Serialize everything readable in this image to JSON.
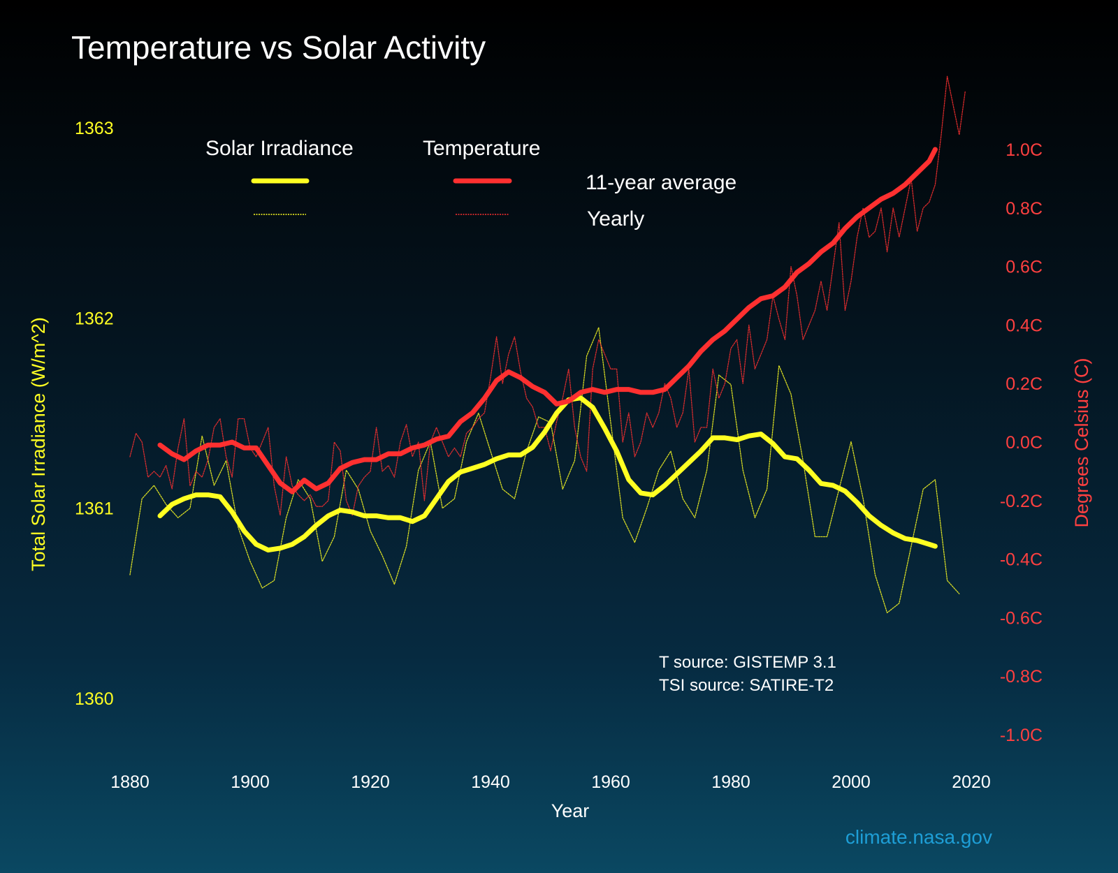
{
  "chart_data": {
    "type": "line",
    "title": "Temperature vs Solar Activity",
    "xlabel": "Year",
    "ylabel_left": "Total Solar Irradiance (W/m^2)",
    "ylabel_right": "Degrees Celsius (C)",
    "xlim": [
      1880,
      2020
    ],
    "ylim_left": [
      1360,
      1363
    ],
    "ylim_right": [
      -1.0,
      1.0
    ],
    "x_ticks": [
      "1880",
      "1900",
      "1920",
      "1940",
      "1960",
      "1980",
      "2000",
      "2020"
    ],
    "y_left_ticks": [
      "1363",
      "1362",
      "1361",
      "1360"
    ],
    "y_right_ticks": [
      "1.0C",
      "0.8C",
      "0.6C",
      "0.4C",
      "0.2C",
      "0.0C",
      "-0.2C",
      "-0.4C",
      "-0.6C",
      "-0.8C",
      "-1.0C"
    ],
    "legend": {
      "groups": [
        "Solar Irradiance",
        "Temperature"
      ],
      "styles": [
        "11-year average",
        "Yearly"
      ]
    },
    "annotations": {
      "t_source": "T source: GISTEMP 3.1",
      "tsi_source": "TSI source: SATIRE-T2",
      "credit": "climate.nasa.gov"
    },
    "colors": {
      "solar": "#ffff22",
      "temperature": "#ff3030",
      "credit": "#1e9ed6"
    },
    "series": [
      {
        "group": "Solar Irradiance",
        "style": "11-year average",
        "axis": "left",
        "x": [
          1885,
          1887,
          1889,
          1891,
          1893,
          1895,
          1897,
          1899,
          1901,
          1903,
          1905,
          1907,
          1909,
          1911,
          1913,
          1915,
          1917,
          1919,
          1921,
          1923,
          1925,
          1927,
          1929,
          1931,
          1933,
          1935,
          1937,
          1939,
          1941,
          1943,
          1945,
          1947,
          1949,
          1951,
          1953,
          1955,
          1957,
          1959,
          1961,
          1963,
          1965,
          1967,
          1969,
          1971,
          1973,
          1975,
          1977,
          1979,
          1981,
          1983,
          1985,
          1987,
          1989,
          1991,
          1993,
          1995,
          1997,
          1999,
          2001,
          2003,
          2005,
          2007,
          2009,
          2011,
          2013,
          2014
        ],
        "y": [
          1360.96,
          1361.02,
          1361.05,
          1361.07,
          1361.07,
          1361.06,
          1360.98,
          1360.88,
          1360.81,
          1360.78,
          1360.79,
          1360.81,
          1360.85,
          1360.91,
          1360.96,
          1360.99,
          1360.98,
          1360.96,
          1360.96,
          1360.95,
          1360.95,
          1360.93,
          1360.96,
          1361.05,
          1361.14,
          1361.19,
          1361.21,
          1361.23,
          1361.26,
          1361.28,
          1361.28,
          1361.32,
          1361.4,
          1361.5,
          1361.57,
          1361.58,
          1361.53,
          1361.42,
          1361.3,
          1361.15,
          1361.08,
          1361.07,
          1361.12,
          1361.18,
          1361.24,
          1361.3,
          1361.37,
          1361.37,
          1361.36,
          1361.38,
          1361.39,
          1361.34,
          1361.27,
          1361.26,
          1361.2,
          1361.13,
          1361.12,
          1361.09,
          1361.03,
          1360.96,
          1360.91,
          1360.87,
          1360.84,
          1360.83,
          1360.81,
          1360.8
        ]
      },
      {
        "group": "Solar Irradiance",
        "style": "Yearly",
        "axis": "left",
        "x": [
          1880,
          1882,
          1884,
          1886,
          1888,
          1890,
          1892,
          1894,
          1896,
          1898,
          1900,
          1902,
          1904,
          1906,
          1908,
          1910,
          1912,
          1914,
          1916,
          1918,
          1920,
          1922,
          1924,
          1926,
          1928,
          1930,
          1932,
          1934,
          1936,
          1938,
          1940,
          1942,
          1944,
          1946,
          1948,
          1950,
          1952,
          1954,
          1956,
          1958,
          1960,
          1962,
          1964,
          1966,
          1968,
          1970,
          1972,
          1974,
          1976,
          1978,
          1980,
          1982,
          1984,
          1986,
          1988,
          1990,
          1992,
          1994,
          1996,
          2000,
          2002,
          2004,
          2006,
          2008,
          2010,
          2012,
          2014,
          2016,
          2018
        ],
        "y": [
          1360.65,
          1361.05,
          1361.12,
          1361.02,
          1360.95,
          1361.0,
          1361.38,
          1361.12,
          1361.25,
          1360.9,
          1360.72,
          1360.58,
          1360.62,
          1360.95,
          1361.15,
          1361.05,
          1360.72,
          1360.85,
          1361.2,
          1361.1,
          1360.88,
          1360.75,
          1360.6,
          1360.8,
          1361.2,
          1361.35,
          1361.0,
          1361.05,
          1361.35,
          1361.5,
          1361.3,
          1361.1,
          1361.05,
          1361.3,
          1361.48,
          1361.45,
          1361.1,
          1361.25,
          1361.8,
          1361.95,
          1361.45,
          1360.95,
          1360.82,
          1361.0,
          1361.2,
          1361.3,
          1361.05,
          1360.95,
          1361.2,
          1361.7,
          1361.65,
          1361.2,
          1360.95,
          1361.1,
          1361.75,
          1361.6,
          1361.25,
          1360.85,
          1360.85,
          1361.35,
          1361.05,
          1360.65,
          1360.45,
          1360.5,
          1360.8,
          1361.1,
          1361.15,
          1360.62,
          1360.55
        ]
      },
      {
        "group": "Temperature",
        "style": "11-year average",
        "axis": "right",
        "x": [
          1885,
          1887,
          1889,
          1891,
          1893,
          1895,
          1897,
          1899,
          1901,
          1903,
          1905,
          1907,
          1909,
          1911,
          1913,
          1915,
          1917,
          1919,
          1921,
          1923,
          1925,
          1927,
          1929,
          1931,
          1933,
          1935,
          1937,
          1939,
          1941,
          1943,
          1945,
          1947,
          1949,
          1951,
          1953,
          1955,
          1957,
          1959,
          1961,
          1963,
          1965,
          1967,
          1969,
          1971,
          1973,
          1975,
          1977,
          1979,
          1981,
          1983,
          1985,
          1987,
          1989,
          1991,
          1993,
          1995,
          1997,
          1999,
          2001,
          2003,
          2005,
          2007,
          2009,
          2011,
          2013,
          2014
        ],
        "y": [
          -0.01,
          -0.04,
          -0.06,
          -0.03,
          -0.01,
          -0.01,
          0.0,
          -0.02,
          -0.02,
          -0.08,
          -0.14,
          -0.17,
          -0.13,
          -0.16,
          -0.14,
          -0.09,
          -0.07,
          -0.06,
          -0.06,
          -0.04,
          -0.04,
          -0.02,
          -0.01,
          0.01,
          0.02,
          0.07,
          0.1,
          0.15,
          0.21,
          0.24,
          0.22,
          0.19,
          0.17,
          0.13,
          0.14,
          0.17,
          0.18,
          0.17,
          0.18,
          0.18,
          0.17,
          0.17,
          0.18,
          0.22,
          0.26,
          0.31,
          0.35,
          0.38,
          0.42,
          0.46,
          0.49,
          0.5,
          0.53,
          0.58,
          0.61,
          0.65,
          0.68,
          0.73,
          0.77,
          0.8,
          0.83,
          0.85,
          0.88,
          0.92,
          0.96,
          1.0
        ]
      },
      {
        "group": "Temperature",
        "style": "Yearly",
        "axis": "right",
        "x": [
          1880,
          1881,
          1882,
          1883,
          1884,
          1885,
          1886,
          1887,
          1888,
          1889,
          1890,
          1891,
          1892,
          1893,
          1894,
          1895,
          1896,
          1897,
          1898,
          1899,
          1900,
          1901,
          1902,
          1903,
          1904,
          1905,
          1906,
          1907,
          1908,
          1909,
          1910,
          1911,
          1912,
          1913,
          1914,
          1915,
          1916,
          1917,
          1918,
          1919,
          1920,
          1921,
          1922,
          1923,
          1924,
          1925,
          1926,
          1927,
          1928,
          1929,
          1930,
          1931,
          1932,
          1933,
          1934,
          1935,
          1936,
          1937,
          1938,
          1939,
          1940,
          1941,
          1942,
          1943,
          1944,
          1945,
          1946,
          1947,
          1948,
          1949,
          1950,
          1951,
          1952,
          1953,
          1954,
          1955,
          1956,
          1957,
          1958,
          1959,
          1960,
          1961,
          1962,
          1963,
          1964,
          1965,
          1966,
          1967,
          1968,
          1969,
          1970,
          1971,
          1972,
          1973,
          1974,
          1975,
          1976,
          1977,
          1978,
          1979,
          1980,
          1981,
          1982,
          1983,
          1984,
          1985,
          1986,
          1987,
          1988,
          1989,
          1990,
          1991,
          1992,
          1993,
          1994,
          1995,
          1996,
          1997,
          1998,
          1999,
          2000,
          2001,
          2002,
          2003,
          2004,
          2005,
          2006,
          2007,
          2008,
          2009,
          2010,
          2011,
          2012,
          2013,
          2014,
          2015,
          2016,
          2017,
          2018,
          2019
        ],
        "y": [
          -0.05,
          0.03,
          0.0,
          -0.12,
          -0.1,
          -0.12,
          -0.08,
          -0.16,
          -0.02,
          0.08,
          -0.15,
          -0.1,
          -0.12,
          -0.06,
          0.05,
          0.08,
          -0.05,
          -0.12,
          0.08,
          0.08,
          -0.02,
          -0.05,
          0.0,
          0.05,
          -0.15,
          -0.25,
          -0.05,
          -0.15,
          -0.18,
          -0.2,
          -0.18,
          -0.22,
          -0.22,
          -0.2,
          0.0,
          -0.03,
          -0.2,
          -0.25,
          -0.15,
          -0.12,
          -0.1,
          0.05,
          -0.1,
          -0.08,
          -0.12,
          0.0,
          0.06,
          -0.05,
          0.0,
          -0.2,
          0.0,
          0.05,
          0.0,
          -0.05,
          -0.02,
          -0.05,
          0.03,
          0.05,
          0.08,
          0.1,
          0.22,
          0.36,
          0.2,
          0.3,
          0.36,
          0.24,
          0.15,
          0.12,
          0.05,
          0.05,
          -0.03,
          0.07,
          0.15,
          0.25,
          0.05,
          -0.05,
          -0.1,
          0.25,
          0.35,
          0.3,
          0.25,
          0.25,
          0.0,
          0.1,
          -0.05,
          0.0,
          0.1,
          0.05,
          0.1,
          0.2,
          0.15,
          0.05,
          0.1,
          0.25,
          0.0,
          0.05,
          0.05,
          0.25,
          0.15,
          0.2,
          0.32,
          0.35,
          0.2,
          0.4,
          0.25,
          0.3,
          0.35,
          0.5,
          0.42,
          0.35,
          0.6,
          0.5,
          0.35,
          0.4,
          0.45,
          0.55,
          0.45,
          0.6,
          0.75,
          0.45,
          0.55,
          0.7,
          0.8,
          0.7,
          0.72,
          0.8,
          0.65,
          0.8,
          0.7,
          0.8,
          0.9,
          0.72,
          0.8,
          0.82,
          0.88,
          1.05,
          1.25,
          1.15,
          1.05,
          1.2
        ]
      }
    ]
  }
}
